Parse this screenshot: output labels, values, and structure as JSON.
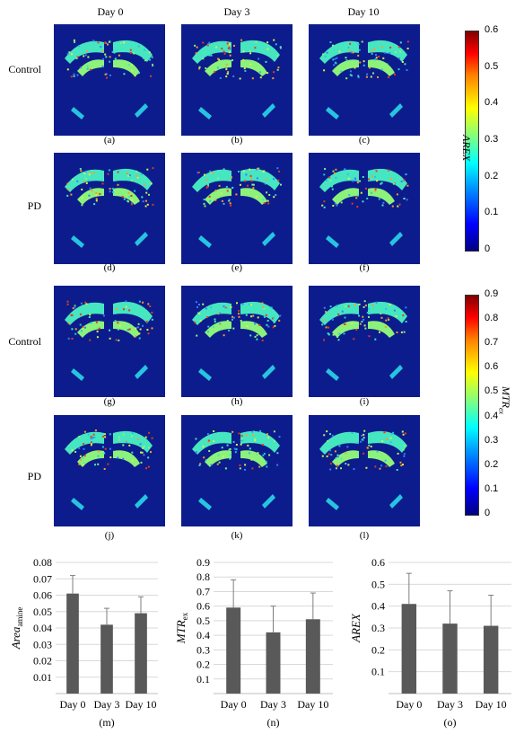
{
  "columns": [
    "Day 0",
    "Day 3",
    "Day 10"
  ],
  "row_labels": [
    "Control",
    "PD",
    "Control",
    "PD"
  ],
  "panel_labels": [
    "(a)",
    "(b)",
    "(c)",
    "(d)",
    "(e)",
    "(f)",
    "(g)",
    "(h)",
    "(i)",
    "(j)",
    "(k)",
    "(l)"
  ],
  "colorbars": [
    {
      "label": "AREX",
      "ticks": [
        "0.6",
        "0.5",
        "0.4",
        "0.3",
        "0.2",
        "0.1",
        "0"
      ],
      "min": 0,
      "max": 0.6
    },
    {
      "label": "MTR",
      "label_sub": "ex",
      "ticks": [
        "0.9",
        "0.8",
        "0.7",
        "0.6",
        "0.5",
        "0.4",
        "0.3",
        "0.2",
        "0.1",
        "0"
      ],
      "min": 0,
      "max": 0.9
    }
  ],
  "colors": {
    "background": "#0c1c8c",
    "bar": "#595959",
    "grid": "#d9d9d9"
  },
  "chart_data": [
    {
      "type": "bar",
      "panel": "(m)",
      "ylabel": "Area",
      "ylabel_sub": "amine",
      "categories": [
        "Day 0",
        "Day 3",
        "Day 10"
      ],
      "values": [
        0.061,
        0.042,
        0.049
      ],
      "errors": [
        0.011,
        0.01,
        0.01
      ],
      "yticks": [
        "0.01",
        "0.02",
        "0.03",
        "0.04",
        "0.05",
        "0.06",
        "0.07",
        "0.08"
      ],
      "ylim": [
        0,
        0.08
      ],
      "grid": true
    },
    {
      "type": "bar",
      "panel": "(n)",
      "ylabel": "MTR",
      "ylabel_sub": "ex",
      "categories": [
        "Day 0",
        "Day 3",
        "Day 10"
      ],
      "values": [
        0.59,
        0.42,
        0.51
      ],
      "errors": [
        0.19,
        0.18,
        0.18
      ],
      "yticks": [
        "0.1",
        "0.2",
        "0.3",
        "0.4",
        "0.5",
        "0.6",
        "0.7",
        "0.8",
        "0.9"
      ],
      "ylim": [
        0,
        0.9
      ],
      "grid": true
    },
    {
      "type": "bar",
      "panel": "(o)",
      "ylabel": "AREX",
      "ylabel_sub": "",
      "categories": [
        "Day 0",
        "Day 3",
        "Day 10"
      ],
      "values": [
        0.41,
        0.32,
        0.31
      ],
      "errors": [
        0.14,
        0.15,
        0.14
      ],
      "yticks": [
        "0.1",
        "0.2",
        "0.3",
        "0.4",
        "0.5",
        "0.6"
      ],
      "ylim": [
        0,
        0.6
      ],
      "grid": true
    }
  ]
}
